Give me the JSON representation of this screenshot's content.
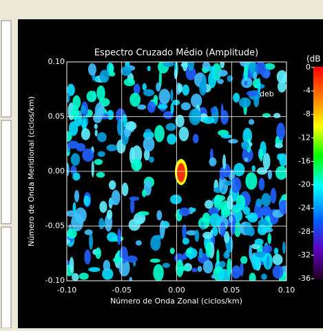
{
  "chart_data": {
    "type": "contour",
    "title": "Espectro Cruzado Médio (Amplitude)",
    "x_label": "Número de Onda Zonal (ciclos/km)",
    "y_label": "Número de Onda Meridional (ciclos/km)",
    "xlim": [
      -0.1,
      0.1
    ],
    "ylim": [
      -0.1,
      0.1
    ],
    "xticks": [
      {
        "value": -0.1,
        "label": "-0.10"
      },
      {
        "value": -0.05,
        "label": "-0.05"
      },
      {
        "value": 0,
        "label": "0.00"
      },
      {
        "value": 0.05,
        "label": "0.05"
      },
      {
        "value": 0.1,
        "label": "0.10"
      }
    ],
    "yticks": [
      {
        "value": -0.1,
        "label": "-0.10"
      },
      {
        "value": -0.05,
        "label": "-0.05"
      },
      {
        "value": 0,
        "label": "0.00"
      },
      {
        "value": 0.05,
        "label": "0.05"
      },
      {
        "value": 0.1,
        "label": "0.10"
      }
    ],
    "grid": true,
    "annotation": "deb",
    "colorbar": {
      "label": "(dB",
      "lim": [
        -36,
        0
      ],
      "ticks": [
        0,
        -4,
        -8,
        -12,
        -16,
        -20,
        -24,
        -28,
        -32,
        -36
      ]
    }
  }
}
